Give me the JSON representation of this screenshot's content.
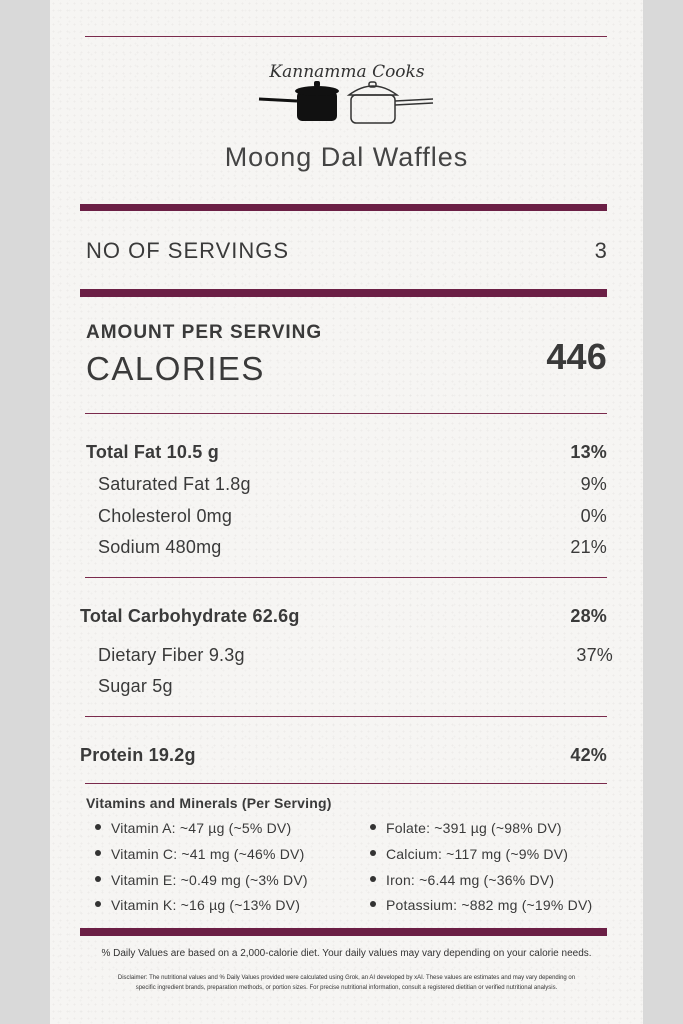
{
  "brand": {
    "logo_text": "Kannamma Cooks"
  },
  "title": "Moong Dal Waffles",
  "servings": {
    "label": "NO OF SERVINGS",
    "value": "3"
  },
  "amount_label": "AMOUNT PER SERVING",
  "calories": {
    "label": "CALORIES",
    "value": "446"
  },
  "nutrients": {
    "total_fat": {
      "label": "Total Fat  10.5 g",
      "dv": "13%"
    },
    "saturated_fat": {
      "label": "Saturated Fat 1.8g",
      "dv": "9%"
    },
    "cholesterol": {
      "label": "Cholesterol 0mg",
      "dv": "0%"
    },
    "sodium": {
      "label": "Sodium 480mg",
      "dv": "21%"
    },
    "total_carbs": {
      "label": "Total Carbohydrate 62.6g",
      "dv": "28%"
    },
    "fiber": {
      "label": "Dietary Fiber 9.3g",
      "dv": "37%"
    },
    "sugar": {
      "label": "Sugar 5g"
    },
    "protein": {
      "label": "Protein 19.2g",
      "dv": "42%"
    }
  },
  "vitamins": {
    "heading": "Vitamins and Minerals (Per Serving)",
    "left": [
      "Vitamin A: ~47 µg (~5% DV)",
      "Vitamin C: ~41 mg (~46% DV)",
      "Vitamin E: ~0.49 mg (~3% DV)",
      "Vitamin K: ~16 µg (~13% DV)"
    ],
    "right": [
      "Folate: ~391 µg (~98% DV)",
      "Calcium: ~117 mg (~9% DV)",
      "Iron: ~6.44 mg (~36% DV)",
      "Potassium: ~882 mg (~19% DV)"
    ]
  },
  "footnote": "% Daily Values are based on a 2,000-calorie diet. Your daily values may vary depending on your calorie needs.",
  "disclaimer_1": "Disclaimer: The nutritional values and % Daily Values provided were calculated using Grok, an AI developed by xAI. These values are estimates and may vary depending on",
  "disclaimer_2": "specific ingredient brands, preparation methods, or portion sizes. For precise nutritional information, consult a registered dietitian or verified nutritional analysis."
}
